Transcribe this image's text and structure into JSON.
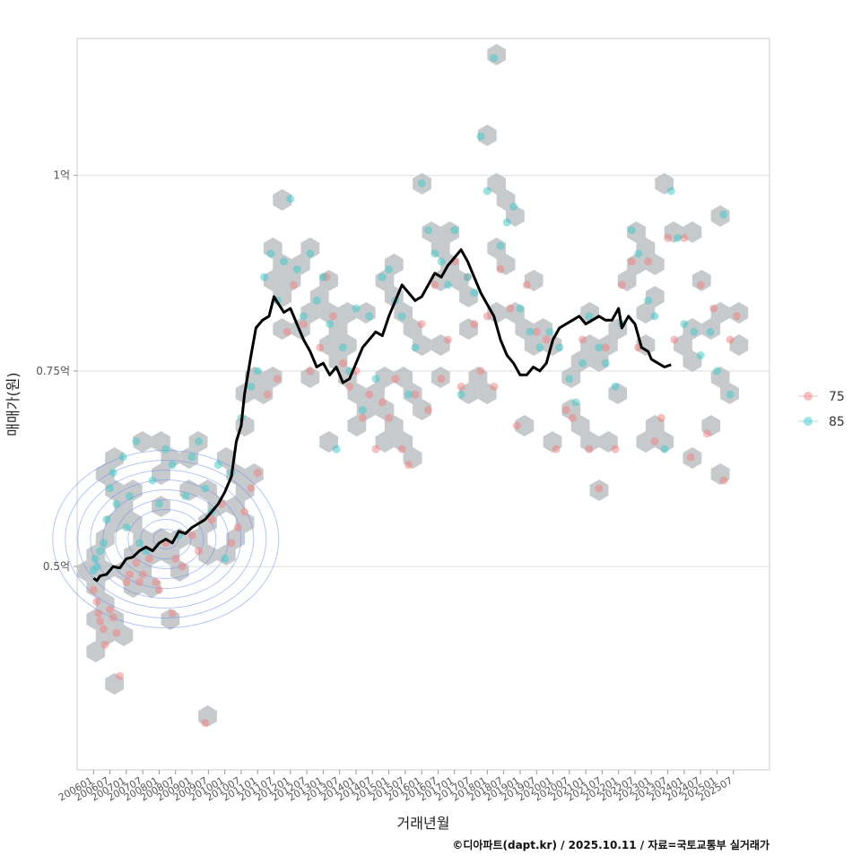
{
  "chart_data": {
    "type": "scatter",
    "title": "",
    "xlabel": "거래년월",
    "ylabel": "매매가(원)",
    "caption": "©디아파트(dapt.kr) / 2025.10.11 / 자료=국토교통부 실거래가",
    "x_ticks": [
      "200601",
      "200607",
      "200701",
      "200707",
      "200801",
      "200807",
      "200901",
      "200907",
      "201001",
      "201007",
      "201101",
      "201107",
      "201201",
      "201207",
      "201301",
      "201307",
      "201401",
      "201407",
      "201501",
      "201507",
      "201601",
      "201607",
      "201701",
      "201707",
      "201801",
      "201807",
      "201901",
      "201907",
      "202001",
      "202007",
      "202101",
      "202107",
      "202201",
      "202207",
      "202301",
      "202307",
      "202401",
      "202407",
      "202501",
      "202507"
    ],
    "y_ticks": [
      {
        "value": 5000,
        "label": "0.5억"
      },
      {
        "value": 7500,
        "label": "0.75억"
      },
      {
        "value": 10000,
        "label": "1억"
      }
    ],
    "xlim": [
      2005.5,
      2026.6
    ],
    "ylim": [
      2400,
      11750
    ],
    "colors": {
      "s75": "#f08080",
      "s85": "#3cc8c8",
      "trend": "#000000",
      "hex": "#b4b8bc",
      "contour": "#6c8ee6",
      "grid": "#dddddd",
      "frame": "#cccccc"
    },
    "legend": {
      "position": "right",
      "entries": [
        {
          "name": "75",
          "color": "#f08080"
        },
        {
          "name": "85",
          "color": "#3cc8c8"
        }
      ]
    },
    "series": [
      {
        "name": "75",
        "points": [
          [
            2006.0,
            4700
          ],
          [
            2006.1,
            4550
          ],
          [
            2006.15,
            4400
          ],
          [
            2006.2,
            4300
          ],
          [
            2006.3,
            4200
          ],
          [
            2006.35,
            4000
          ],
          [
            2006.5,
            4450
          ],
          [
            2006.6,
            4350
          ],
          [
            2006.7,
            4150
          ],
          [
            2006.8,
            3600
          ],
          [
            2007.0,
            4800
          ],
          [
            2007.1,
            4900
          ],
          [
            2007.3,
            5050
          ],
          [
            2007.4,
            4800
          ],
          [
            2007.5,
            4900
          ],
          [
            2007.7,
            5100
          ],
          [
            2007.9,
            4800
          ],
          [
            2008.0,
            4700
          ],
          [
            2008.2,
            5300
          ],
          [
            2008.4,
            4400
          ],
          [
            2008.5,
            5100
          ],
          [
            2008.7,
            5000
          ],
          [
            2009.0,
            5400
          ],
          [
            2009.2,
            5200
          ],
          [
            2009.4,
            3000
          ],
          [
            2009.6,
            5600
          ],
          [
            2009.9,
            5800
          ],
          [
            2010.2,
            5300
          ],
          [
            2010.4,
            5500
          ],
          [
            2010.6,
            5700
          ],
          [
            2010.8,
            6000
          ],
          [
            2011.0,
            6200
          ],
          [
            2011.3,
            7200
          ],
          [
            2011.6,
            7400
          ],
          [
            2011.9,
            8000
          ],
          [
            2012.1,
            8600
          ],
          [
            2012.4,
            8100
          ],
          [
            2012.6,
            7500
          ],
          [
            2012.9,
            7800
          ],
          [
            2013.1,
            8700
          ],
          [
            2013.3,
            8200
          ],
          [
            2013.6,
            7600
          ],
          [
            2013.8,
            7300
          ],
          [
            2014.0,
            7500
          ],
          [
            2014.2,
            6900
          ],
          [
            2014.4,
            7200
          ],
          [
            2014.6,
            6500
          ],
          [
            2014.8,
            7100
          ],
          [
            2015.0,
            6900
          ],
          [
            2015.2,
            7400
          ],
          [
            2015.4,
            6500
          ],
          [
            2015.6,
            6300
          ],
          [
            2015.8,
            7200
          ],
          [
            2016.0,
            8100
          ],
          [
            2016.2,
            7000
          ],
          [
            2016.4,
            8600
          ],
          [
            2016.6,
            7400
          ],
          [
            2016.8,
            7900
          ],
          [
            2017.0,
            8900
          ],
          [
            2017.2,
            7300
          ],
          [
            2017.4,
            8700
          ],
          [
            2017.6,
            8100
          ],
          [
            2017.8,
            7500
          ],
          [
            2018.0,
            8200
          ],
          [
            2018.2,
            7300
          ],
          [
            2018.4,
            8800
          ],
          [
            2018.7,
            8300
          ],
          [
            2018.9,
            6800
          ],
          [
            2019.2,
            8600
          ],
          [
            2019.5,
            8000
          ],
          [
            2019.8,
            7900
          ],
          [
            2020.1,
            6500
          ],
          [
            2020.4,
            7000
          ],
          [
            2020.6,
            6900
          ],
          [
            2020.9,
            7900
          ],
          [
            2021.1,
            6500
          ],
          [
            2021.4,
            6000
          ],
          [
            2021.6,
            7800
          ],
          [
            2021.9,
            6500
          ],
          [
            2022.1,
            8600
          ],
          [
            2022.4,
            8900
          ],
          [
            2022.6,
            7800
          ],
          [
            2022.9,
            8900
          ],
          [
            2023.1,
            6600
          ],
          [
            2023.3,
            6900
          ],
          [
            2023.5,
            9200
          ],
          [
            2023.7,
            7900
          ],
          [
            2024.0,
            9200
          ],
          [
            2024.2,
            6400
          ],
          [
            2024.5,
            8600
          ],
          [
            2024.7,
            6700
          ],
          [
            2024.9,
            8300
          ],
          [
            2025.2,
            6100
          ],
          [
            2025.4,
            7900
          ],
          [
            2025.6,
            8200
          ]
        ]
      },
      {
        "name": "85",
        "points": [
          [
            2006.0,
            4950
          ],
          [
            2006.05,
            5100
          ],
          [
            2006.1,
            5000
          ],
          [
            2006.2,
            5200
          ],
          [
            2006.3,
            5300
          ],
          [
            2006.4,
            5600
          ],
          [
            2006.5,
            6000
          ],
          [
            2006.6,
            6200
          ],
          [
            2006.7,
            5800
          ],
          [
            2006.9,
            6400
          ],
          [
            2007.0,
            5500
          ],
          [
            2007.1,
            5900
          ],
          [
            2007.3,
            6600
          ],
          [
            2007.4,
            5300
          ],
          [
            2007.6,
            5200
          ],
          [
            2007.8,
            6100
          ],
          [
            2008.0,
            5800
          ],
          [
            2008.2,
            6500
          ],
          [
            2008.4,
            6300
          ],
          [
            2008.6,
            5400
          ],
          [
            2008.8,
            5900
          ],
          [
            2009.0,
            6400
          ],
          [
            2009.2,
            6600
          ],
          [
            2009.4,
            6000
          ],
          [
            2009.6,
            5700
          ],
          [
            2009.8,
            6300
          ],
          [
            2010.0,
            5100
          ],
          [
            2010.2,
            6200
          ],
          [
            2010.5,
            6900
          ],
          [
            2010.8,
            7300
          ],
          [
            2011.0,
            7500
          ],
          [
            2011.2,
            8700
          ],
          [
            2011.4,
            9000
          ],
          [
            2011.6,
            8400
          ],
          [
            2011.8,
            8900
          ],
          [
            2012.0,
            9700
          ],
          [
            2012.2,
            8800
          ],
          [
            2012.4,
            8200
          ],
          [
            2012.6,
            9000
          ],
          [
            2012.8,
            8400
          ],
          [
            2013.0,
            8700
          ],
          [
            2013.2,
            8100
          ],
          [
            2013.4,
            6500
          ],
          [
            2013.6,
            7800
          ],
          [
            2013.8,
            7500
          ],
          [
            2014.0,
            8300
          ],
          [
            2014.2,
            7000
          ],
          [
            2014.4,
            8200
          ],
          [
            2014.6,
            7400
          ],
          [
            2014.8,
            8700
          ],
          [
            2015.0,
            8800
          ],
          [
            2015.2,
            8400
          ],
          [
            2015.4,
            8200
          ],
          [
            2015.6,
            7200
          ],
          [
            2015.8,
            7800
          ],
          [
            2016.0,
            9900
          ],
          [
            2016.2,
            9300
          ],
          [
            2016.4,
            9000
          ],
          [
            2016.6,
            8900
          ],
          [
            2016.8,
            8600
          ],
          [
            2017.0,
            9300
          ],
          [
            2017.2,
            7200
          ],
          [
            2017.4,
            8700
          ],
          [
            2017.6,
            8500
          ],
          [
            2017.8,
            10500
          ],
          [
            2018.0,
            9800
          ],
          [
            2018.2,
            11500
          ],
          [
            2018.4,
            9100
          ],
          [
            2018.6,
            9400
          ],
          [
            2018.8,
            9600
          ],
          [
            2019.0,
            8300
          ],
          [
            2019.3,
            8000
          ],
          [
            2019.6,
            7800
          ],
          [
            2019.9,
            8000
          ],
          [
            2020.2,
            7800
          ],
          [
            2020.5,
            7400
          ],
          [
            2020.7,
            7100
          ],
          [
            2020.9,
            7600
          ],
          [
            2021.1,
            8200
          ],
          [
            2021.4,
            7800
          ],
          [
            2021.6,
            7600
          ],
          [
            2021.9,
            7300
          ],
          [
            2022.1,
            8100
          ],
          [
            2022.4,
            9300
          ],
          [
            2022.6,
            9000
          ],
          [
            2022.9,
            8400
          ],
          [
            2023.1,
            8200
          ],
          [
            2023.4,
            6500
          ],
          [
            2023.6,
            9800
          ],
          [
            2023.8,
            9200
          ],
          [
            2024.0,
            8100
          ],
          [
            2024.3,
            8000
          ],
          [
            2024.5,
            7700
          ],
          [
            2024.8,
            8000
          ],
          [
            2025.0,
            7500
          ],
          [
            2025.2,
            9500
          ],
          [
            2025.4,
            7200
          ]
        ]
      },
      {
        "name": "trend",
        "points": [
          [
            2006.0,
            4850
          ],
          [
            2006.1,
            4820
          ],
          [
            2006.2,
            4880
          ],
          [
            2006.4,
            4900
          ],
          [
            2006.6,
            5000
          ],
          [
            2006.8,
            4980
          ],
          [
            2007.0,
            5100
          ],
          [
            2007.2,
            5120
          ],
          [
            2007.4,
            5200
          ],
          [
            2007.6,
            5250
          ],
          [
            2007.8,
            5200
          ],
          [
            2008.0,
            5300
          ],
          [
            2008.2,
            5350
          ],
          [
            2008.4,
            5300
          ],
          [
            2008.6,
            5450
          ],
          [
            2008.8,
            5420
          ],
          [
            2009.0,
            5500
          ],
          [
            2009.2,
            5550
          ],
          [
            2009.4,
            5600
          ],
          [
            2009.6,
            5700
          ],
          [
            2009.8,
            5800
          ],
          [
            2010.0,
            5950
          ],
          [
            2010.2,
            6150
          ],
          [
            2010.35,
            6600
          ],
          [
            2010.5,
            6800
          ],
          [
            2010.6,
            7200
          ],
          [
            2010.8,
            7700
          ],
          [
            2010.95,
            8050
          ],
          [
            2011.15,
            8150
          ],
          [
            2011.35,
            8200
          ],
          [
            2011.5,
            8450
          ],
          [
            2011.6,
            8380
          ],
          [
            2011.8,
            8250
          ],
          [
            2012.0,
            8300
          ],
          [
            2012.2,
            8100
          ],
          [
            2012.4,
            7900
          ],
          [
            2012.6,
            7750
          ],
          [
            2012.8,
            7550
          ],
          [
            2013.0,
            7600
          ],
          [
            2013.2,
            7450
          ],
          [
            2013.4,
            7550
          ],
          [
            2013.6,
            7350
          ],
          [
            2013.8,
            7400
          ],
          [
            2014.0,
            7600
          ],
          [
            2014.2,
            7800
          ],
          [
            2014.4,
            7900
          ],
          [
            2014.6,
            8000
          ],
          [
            2014.8,
            7950
          ],
          [
            2015.0,
            8200
          ],
          [
            2015.2,
            8400
          ],
          [
            2015.4,
            8600
          ],
          [
            2015.6,
            8500
          ],
          [
            2015.8,
            8400
          ],
          [
            2016.0,
            8450
          ],
          [
            2016.2,
            8600
          ],
          [
            2016.4,
            8750
          ],
          [
            2016.6,
            8700
          ],
          [
            2016.8,
            8850
          ],
          [
            2017.0,
            8950
          ],
          [
            2017.2,
            9050
          ],
          [
            2017.4,
            8900
          ],
          [
            2017.6,
            8700
          ],
          [
            2017.8,
            8500
          ],
          [
            2018.0,
            8350
          ],
          [
            2018.2,
            8200
          ],
          [
            2018.4,
            7900
          ],
          [
            2018.6,
            7700
          ],
          [
            2018.8,
            7600
          ],
          [
            2019.0,
            7450
          ],
          [
            2019.2,
            7450
          ],
          [
            2019.4,
            7550
          ],
          [
            2019.6,
            7500
          ],
          [
            2019.8,
            7600
          ],
          [
            2020.0,
            7900
          ],
          [
            2020.2,
            8050
          ],
          [
            2020.4,
            8100
          ],
          [
            2020.6,
            8150
          ],
          [
            2020.8,
            8200
          ],
          [
            2021.0,
            8100
          ],
          [
            2021.2,
            8150
          ],
          [
            2021.4,
            8200
          ],
          [
            2021.6,
            8150
          ],
          [
            2021.8,
            8150
          ],
          [
            2022.0,
            8300
          ],
          [
            2022.1,
            8050
          ],
          [
            2022.3,
            8200
          ],
          [
            2022.5,
            8100
          ],
          [
            2022.7,
            7800
          ],
          [
            2022.9,
            7750
          ],
          [
            2023.0,
            7650
          ],
          [
            2023.2,
            7600
          ],
          [
            2023.4,
            7550
          ],
          [
            2023.6,
            7580
          ]
        ]
      }
    ]
  }
}
